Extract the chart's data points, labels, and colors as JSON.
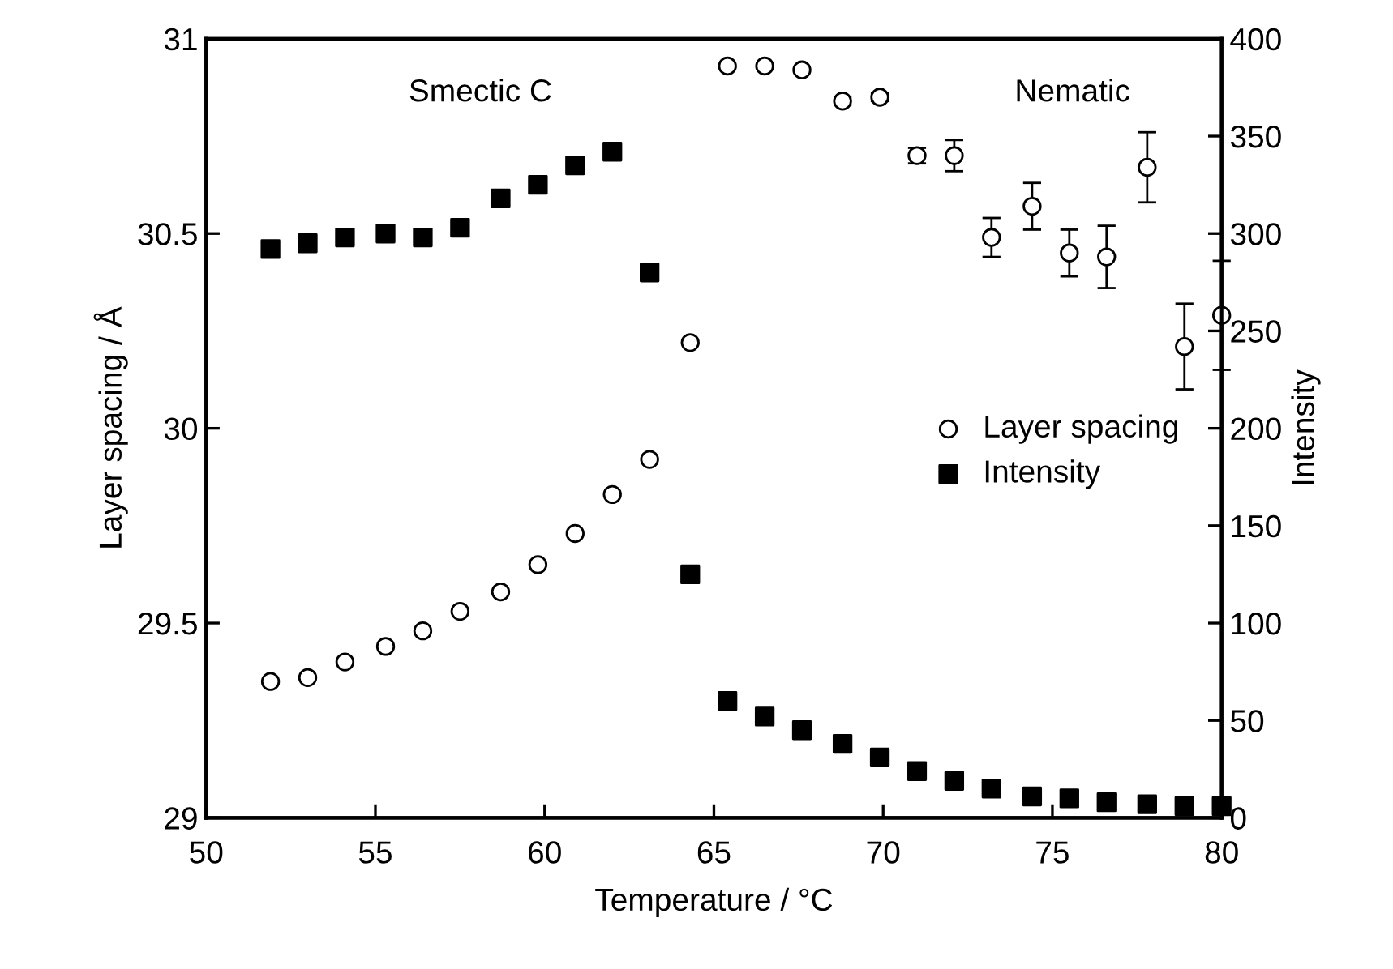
{
  "chart_data": {
    "type": "scatter",
    "xlabel": "Temperature / °C",
    "ylabel": "Layer spacing / Å",
    "y2label": "Intensity",
    "x": [
      51.9,
      53.0,
      54.1,
      55.3,
      56.4,
      57.5,
      58.7,
      59.8,
      60.9,
      62.0,
      63.1,
      64.3,
      65.4,
      66.5,
      67.6,
      68.8,
      69.9,
      71.0,
      72.1,
      73.2,
      74.4,
      75.5,
      76.6,
      77.8,
      78.9,
      80.0
    ],
    "series": [
      {
        "name": "Layer spacing",
        "color": "#000000",
        "marker": "circle",
        "values": [
          29.35,
          29.36,
          29.4,
          29.44,
          29.48,
          29.53,
          29.58,
          29.65,
          29.73,
          29.83,
          29.92,
          30.22,
          30.93,
          30.93,
          30.92,
          30.84,
          30.85,
          30.7,
          30.7,
          30.49,
          30.57,
          30.45,
          30.44,
          30.67,
          30.21,
          30.29
        ],
        "errors": [
          null,
          null,
          null,
          null,
          null,
          null,
          null,
          null,
          null,
          null,
          null,
          null,
          null,
          null,
          null,
          0.01,
          0.01,
          0.02,
          0.04,
          0.05,
          0.06,
          0.06,
          0.08,
          0.09,
          0.11,
          0.14
        ]
      },
      {
        "name": "Intensity",
        "color": "#000000",
        "marker": "square",
        "axis": "y2",
        "values": [
          292,
          295,
          298,
          300,
          298,
          303,
          318,
          325,
          335,
          342,
          280,
          125,
          60,
          52,
          45,
          38,
          31,
          24,
          19,
          15,
          11,
          10,
          8,
          7,
          6,
          6
        ]
      }
    ],
    "xlim": [
      50,
      80
    ],
    "xticks": [
      50,
      55,
      60,
      65,
      70,
      75,
      80
    ],
    "ylim": [
      29,
      31
    ],
    "yticks": [
      29,
      29.5,
      30,
      30.5,
      31
    ],
    "y2lim": [
      0,
      400
    ],
    "y2ticks": [
      0,
      50,
      100,
      150,
      200,
      250,
      300,
      350,
      400
    ],
    "annotations": [
      "Smectic C",
      "Nematic"
    ],
    "legend": "right",
    "grid": false
  }
}
